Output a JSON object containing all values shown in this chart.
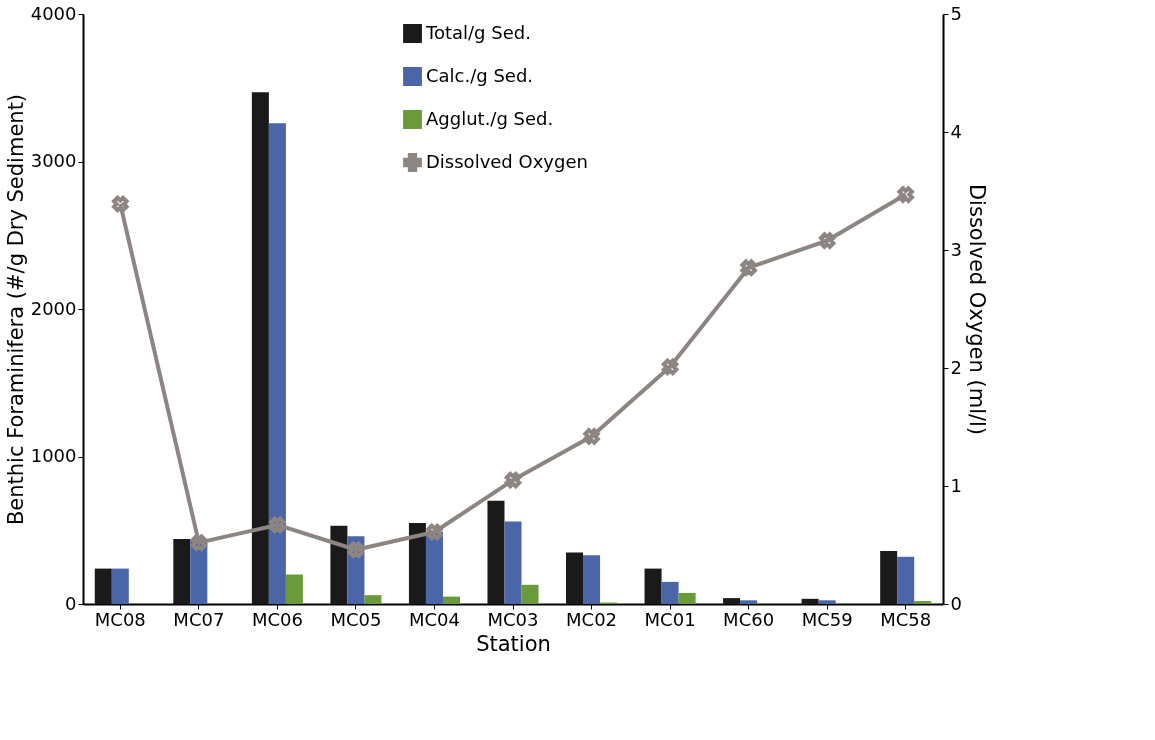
{
  "chart_data": {
    "type": "bar",
    "xlabel": "Station",
    "ylabel": "Benthic Foraminifera (#/g Dry Sediment)",
    "y2label": "Dissolved Oxygen (ml/l)",
    "categories": [
      "MC08",
      "MC07",
      "MC06",
      "MC05",
      "MC04",
      "MC03",
      "MC02",
      "MC01",
      "MC60",
      "MC59",
      "MC58"
    ],
    "series": [
      {
        "name": "Total/g Sed.",
        "color": "#1a1a1a",
        "values": [
          240,
          440,
          3470,
          530,
          550,
          700,
          350,
          240,
          40,
          35,
          360
        ]
      },
      {
        "name": "Calc./g Sed.",
        "color": "#4a66a8",
        "values": [
          240,
          430,
          3260,
          460,
          490,
          560,
          330,
          150,
          25,
          25,
          320
        ]
      },
      {
        "name": "Agglut./g Sed.",
        "color": "#6a9a3a",
        "values": [
          0,
          0,
          200,
          60,
          50,
          130,
          10,
          75,
          0,
          0,
          20
        ]
      },
      {
        "name": "Dissolved Oxygen",
        "type": "line",
        "axis": "y2",
        "marker": "cross",
        "color": "#8c8582",
        "values": [
          3.39,
          0.52,
          0.67,
          0.46,
          0.61,
          1.05,
          1.42,
          2.01,
          2.85,
          3.08,
          3.47
        ]
      }
    ],
    "ylim": [
      0,
      4000
    ],
    "yticks": [
      0,
      1000,
      2000,
      3000,
      4000
    ],
    "y2lim": [
      0,
      5
    ],
    "y2ticks": [
      0,
      1,
      2,
      3,
      4,
      5
    ],
    "grid": false,
    "legend": "top"
  }
}
